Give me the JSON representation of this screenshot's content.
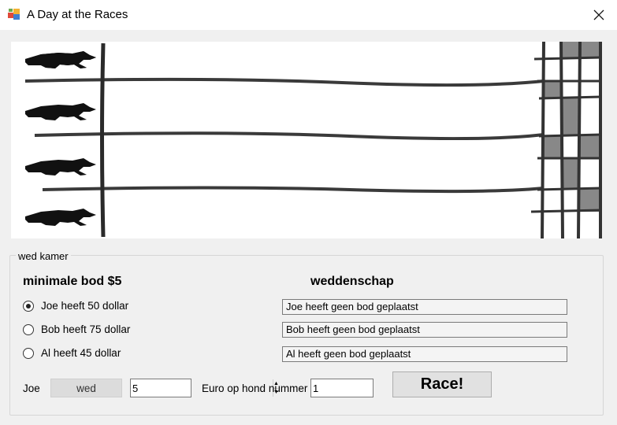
{
  "window": {
    "title": "A Day at the Races",
    "close_icon": "×"
  },
  "race_track": {
    "dogs": 4
  },
  "betting": {
    "group_label": "wed kamer",
    "minimum_bet_label": "minimale bod $5",
    "bets_heading": "weddenschap",
    "bettors": [
      {
        "label": "Joe heeft 50 dollar",
        "selected": true,
        "bet": "Joe heeft geen bod geplaatst"
      },
      {
        "label": "Bob heeft 75 dollar",
        "selected": false,
        "bet": "Bob heeft geen bod geplaatst"
      },
      {
        "label": "Al heeft 45 dollar",
        "selected": false,
        "bet": "Al heeft geen bod geplaatst"
      }
    ],
    "current_bettor": "Joe",
    "bet_button": "wed",
    "amount_value": "5",
    "dog_label": "Euro op hond nummer",
    "dog_value": "1",
    "race_button": "Race!"
  },
  "spinner_icons": {
    "up": "▲",
    "down": "▼"
  }
}
